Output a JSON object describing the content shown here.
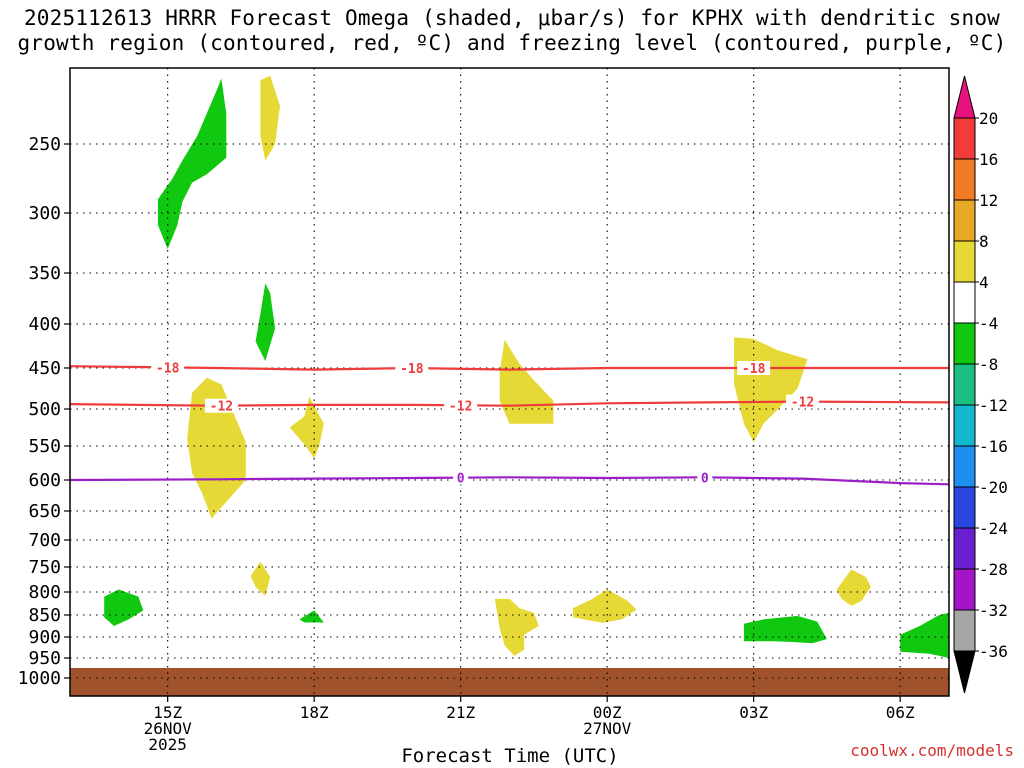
{
  "title": {
    "line1": "2025112613 HRRR Forecast Omega (shaded, μbar/s) for KPHX with dendritic snow",
    "line2": "growth region (contoured, red, ºC) and freezing level (contoured, purple, ºC)"
  },
  "watermark": "coolwx.com/models",
  "chart_data": {
    "type": "time-height cross section",
    "title": "2025112613 HRRR Forecast Omega (shaded, μbar/s) for KPHX with dendritic snow growth region (contoured, red, ºC) and freezing level (contoured, purple, ºC)",
    "xlabel": "Forecast Time (UTC)",
    "ylabel": "",
    "time_range_hours": [
      13.0,
      31.0
    ],
    "x_ticks": [
      {
        "t": 15,
        "label": "15Z",
        "sub": [
          "26NOV",
          "2025"
        ]
      },
      {
        "t": 18,
        "label": "18Z",
        "sub": []
      },
      {
        "t": 21,
        "label": "21Z",
        "sub": []
      },
      {
        "t": 24,
        "label": "00Z",
        "sub": [
          "27NOV"
        ]
      },
      {
        "t": 27,
        "label": "03Z",
        "sub": []
      },
      {
        "t": 30,
        "label": "06Z",
        "sub": []
      }
    ],
    "pressure_range_hpa": [
      200,
      1050
    ],
    "y_ticks": [
      250,
      300,
      350,
      400,
      450,
      500,
      550,
      600,
      650,
      700,
      750,
      800,
      850,
      900,
      950,
      1000
    ],
    "ground_pressure_hpa": 975,
    "ground_color": "#a0522d",
    "colorbar": {
      "labels": [
        20,
        16,
        12,
        8,
        4,
        -4,
        -8,
        -12,
        -16,
        -20,
        -24,
        -28,
        -32,
        -36
      ],
      "bins": [
        {
          "color": "#e8127e"
        },
        {
          "color": "#f23c3c"
        },
        {
          "color": "#f07b23"
        },
        {
          "color": "#e8a826"
        },
        {
          "color": "#e6d935"
        },
        {
          "color": "#ffffff"
        },
        {
          "color": "#10c810"
        },
        {
          "color": "#1cbf82"
        },
        {
          "color": "#12b7d0"
        },
        {
          "color": "#1d8fee"
        },
        {
          "color": "#2a46e0"
        },
        {
          "color": "#6a1fcf"
        },
        {
          "color": "#a414c8"
        },
        {
          "color": "#a6a6a6"
        },
        {
          "color": "#000000"
        }
      ]
    },
    "shaded_regions": [
      {
        "name": "omega-green-upper",
        "fill": "#10c810",
        "value_range": [
          -8,
          -4
        ],
        "points": [
          [
            14.8,
            310
          ],
          [
            14.8,
            290
          ],
          [
            15.1,
            275
          ],
          [
            15.3,
            262
          ],
          [
            15.6,
            245
          ],
          [
            16.0,
            215
          ],
          [
            16.1,
            207
          ],
          [
            16.2,
            230
          ],
          [
            16.2,
            260
          ],
          [
            15.8,
            272
          ],
          [
            15.5,
            278
          ],
          [
            15.3,
            292
          ],
          [
            15.2,
            310
          ],
          [
            15.0,
            330
          ]
        ]
      },
      {
        "name": "omega-yellow-top",
        "fill": "#e6d935",
        "value_range": [
          4,
          8
        ],
        "points": [
          [
            16.9,
            208
          ],
          [
            17.1,
            205
          ],
          [
            17.3,
            225
          ],
          [
            17.2,
            250
          ],
          [
            17.0,
            262
          ],
          [
            16.9,
            245
          ]
        ]
      },
      {
        "name": "omega-green-mid",
        "fill": "#10c810",
        "value_range": [
          -8,
          -4
        ],
        "points": [
          [
            16.9,
            390
          ],
          [
            17.0,
            360
          ],
          [
            17.1,
            370
          ],
          [
            17.2,
            405
          ],
          [
            17.0,
            442
          ],
          [
            16.8,
            420
          ]
        ]
      },
      {
        "name": "omega-yellow-1",
        "fill": "#e6d935",
        "value_range": [
          4,
          8
        ],
        "points": [
          [
            15.4,
            540
          ],
          [
            15.5,
            480
          ],
          [
            15.8,
            462
          ],
          [
            16.1,
            470
          ],
          [
            16.6,
            545
          ],
          [
            16.6,
            600
          ],
          [
            16.2,
            635
          ],
          [
            15.9,
            663
          ],
          [
            15.7,
            620
          ],
          [
            15.5,
            590
          ]
        ]
      },
      {
        "name": "omega-yellow-2",
        "fill": "#e6d935",
        "value_range": [
          4,
          8
        ],
        "points": [
          [
            17.5,
            525
          ],
          [
            17.8,
            510
          ],
          [
            17.9,
            485
          ],
          [
            18.2,
            520
          ],
          [
            18.1,
            550
          ],
          [
            18.0,
            568
          ],
          [
            17.8,
            548
          ]
        ]
      },
      {
        "name": "omega-yellow-3",
        "fill": "#e6d935",
        "value_range": [
          4,
          8
        ],
        "points": [
          [
            21.8,
            455
          ],
          [
            21.9,
            418
          ],
          [
            22.2,
            445
          ],
          [
            22.5,
            465
          ],
          [
            22.9,
            490
          ],
          [
            22.9,
            520
          ],
          [
            22.0,
            520
          ],
          [
            21.8,
            490
          ]
        ]
      },
      {
        "name": "omega-yellow-4",
        "fill": "#e6d935",
        "value_range": [
          4,
          8
        ],
        "points": [
          [
            26.6,
            415
          ],
          [
            27.0,
            417
          ],
          [
            27.5,
            430
          ],
          [
            28.1,
            440
          ],
          [
            27.9,
            475
          ],
          [
            27.5,
            500
          ],
          [
            27.2,
            520
          ],
          [
            27.0,
            545
          ],
          [
            26.8,
            520
          ],
          [
            26.6,
            470
          ]
        ]
      },
      {
        "name": "omega-yellow-5",
        "fill": "#e6d935",
        "value_range": [
          4,
          8
        ],
        "points": [
          [
            16.7,
            768
          ],
          [
            16.9,
            740
          ],
          [
            17.1,
            770
          ],
          [
            17.0,
            808
          ],
          [
            16.8,
            790
          ]
        ]
      },
      {
        "name": "omega-yellow-6",
        "fill": "#e6d935",
        "value_range": [
          4,
          8
        ],
        "points": [
          [
            23.3,
            835
          ],
          [
            23.7,
            815
          ],
          [
            24.0,
            795
          ],
          [
            24.4,
            818
          ],
          [
            24.6,
            838
          ],
          [
            24.3,
            860
          ],
          [
            23.9,
            868
          ],
          [
            23.3,
            855
          ]
        ]
      },
      {
        "name": "omega-yellow-7",
        "fill": "#e6d935",
        "value_range": [
          4,
          8
        ],
        "points": [
          [
            28.7,
            795
          ],
          [
            29.0,
            755
          ],
          [
            29.3,
            770
          ],
          [
            29.4,
            790
          ],
          [
            29.2,
            820
          ],
          [
            29.0,
            830
          ],
          [
            28.8,
            815
          ]
        ]
      },
      {
        "name": "omega-yellow-8",
        "fill": "#e6d935",
        "value_range": [
          4,
          8
        ],
        "points": [
          [
            21.7,
            815
          ],
          [
            22.0,
            815
          ],
          [
            22.2,
            835
          ],
          [
            22.5,
            845
          ],
          [
            22.6,
            875
          ],
          [
            22.3,
            895
          ],
          [
            22.3,
            930
          ],
          [
            22.1,
            945
          ],
          [
            21.9,
            920
          ],
          [
            21.8,
            880
          ]
        ]
      },
      {
        "name": "omega-green-low-1",
        "fill": "#10c810",
        "value_range": [
          -8,
          -4
        ],
        "points": [
          [
            13.7,
            810
          ],
          [
            14.0,
            795
          ],
          [
            14.4,
            810
          ],
          [
            14.5,
            840
          ],
          [
            14.2,
            860
          ],
          [
            13.9,
            875
          ],
          [
            13.7,
            855
          ]
        ]
      },
      {
        "name": "omega-green-low-2",
        "fill": "#10c810",
        "value_range": [
          -8,
          -4
        ],
        "points": [
          [
            17.7,
            860
          ],
          [
            18.0,
            840
          ],
          [
            18.2,
            867
          ],
          [
            17.8,
            867
          ]
        ]
      },
      {
        "name": "omega-green-low-3",
        "fill": "#10c810",
        "value_range": [
          -8,
          -4
        ],
        "points": [
          [
            26.8,
            870
          ],
          [
            27.2,
            860
          ],
          [
            27.9,
            852
          ],
          [
            28.3,
            865
          ],
          [
            28.5,
            905
          ],
          [
            28.2,
            915
          ],
          [
            27.8,
            912
          ],
          [
            27.4,
            910
          ],
          [
            26.8,
            910
          ]
        ]
      },
      {
        "name": "omega-green-low-4",
        "fill": "#10c810",
        "value_range": [
          -8,
          -4
        ],
        "points": [
          [
            30.0,
            895
          ],
          [
            30.4,
            875
          ],
          [
            30.8,
            850
          ],
          [
            31.0,
            845
          ],
          [
            31.0,
            950
          ],
          [
            30.6,
            940
          ],
          [
            30.0,
            935
          ]
        ]
      }
    ],
    "contours": [
      {
        "name": "contour-dgz-minus18",
        "color": "#ee3b3b",
        "value_c": -18,
        "label": "-18",
        "points": [
          [
            13.0,
            448
          ],
          [
            16.0,
            450
          ],
          [
            18.0,
            452
          ],
          [
            20.0,
            450
          ],
          [
            22.0,
            452
          ],
          [
            24.0,
            450
          ],
          [
            26.0,
            450
          ],
          [
            28.0,
            450
          ],
          [
            31.0,
            450
          ]
        ],
        "label_times": [
          15.0,
          20.0,
          27.0
        ]
      },
      {
        "name": "contour-dgz-minus12",
        "color": "#ee3b3b",
        "value_c": -12,
        "label": "-12",
        "points": [
          [
            13.0,
            494
          ],
          [
            16.0,
            496
          ],
          [
            18.0,
            495
          ],
          [
            20.0,
            495
          ],
          [
            22.0,
            496
          ],
          [
            24.0,
            493
          ],
          [
            26.0,
            492
          ],
          [
            28.0,
            491
          ],
          [
            31.0,
            492
          ]
        ],
        "label_times": [
          16.1,
          21.0,
          28.0
        ]
      },
      {
        "name": "contour-freezing-level",
        "color": "#9b1fc9",
        "value_c": 0,
        "label": "0",
        "points": [
          [
            13.0,
            600
          ],
          [
            16.0,
            599
          ],
          [
            18.0,
            598
          ],
          [
            20.0,
            597
          ],
          [
            22.0,
            596
          ],
          [
            24.0,
            597
          ],
          [
            26.0,
            596
          ],
          [
            27.0,
            597
          ],
          [
            28.0,
            598
          ],
          [
            30.0,
            605
          ],
          [
            31.0,
            607
          ]
        ],
        "label_times": [
          21.0,
          26.0
        ]
      }
    ]
  }
}
